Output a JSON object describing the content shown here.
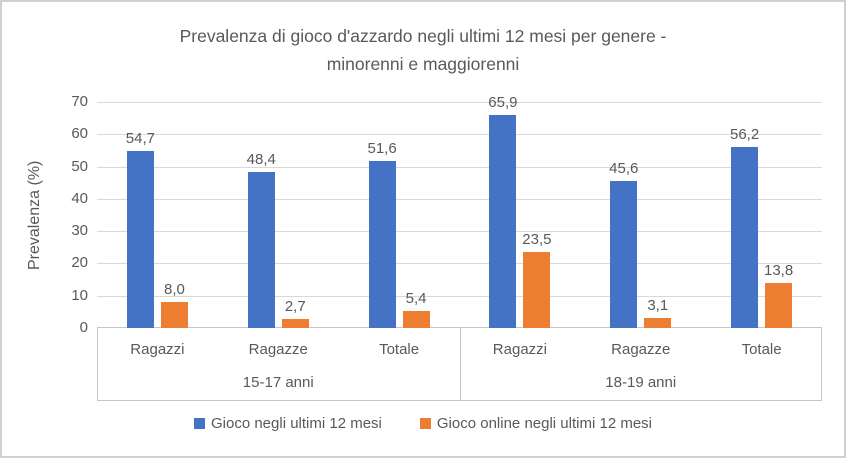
{
  "page": {
    "background": "#FFFFFF",
    "border_color": "#D0D0D0"
  },
  "chart_data": {
    "type": "bar",
    "title": "Prevalenza di gioco d'azzardo negli ultimi 12 mesi per genere - minorenni e maggiorenni",
    "title_lines": [
      "Prevalenza di gioco d'azzardo negli ultimi 12 mesi per genere -",
      "minorenni e maggiorenni"
    ],
    "ylabel": "Prevalenza (%)",
    "xlabel": "",
    "ylim": [
      0,
      70
    ],
    "yticks": [
      0,
      10,
      20,
      30,
      40,
      50,
      60,
      70
    ],
    "grid": true,
    "legend_position": "bottom",
    "categories": [
      "Ragazzi",
      "Ragazze",
      "Totale",
      "Ragazzi",
      "Ragazze",
      "Totale"
    ],
    "group_labels": [
      "15-17 anni",
      "18-19 anni"
    ],
    "series": [
      {
        "name": "Gioco negli ultimi 12 mesi",
        "color": "#4472C4",
        "values": [
          54.7,
          48.4,
          51.6,
          65.9,
          45.6,
          56.2
        ],
        "value_labels": [
          "54,7",
          "48,4",
          "51,6",
          "65,9",
          "45,6",
          "56,2"
        ]
      },
      {
        "name": "Gioco online negli ultimi 12 mesi",
        "color": "#ED7D31",
        "values": [
          8.0,
          2.7,
          5.4,
          23.5,
          3.1,
          13.8
        ],
        "value_labels": [
          "8,0",
          "2,7",
          "5,4",
          "23,5",
          "3,1",
          "13,8"
        ]
      }
    ],
    "text_color": "#595959",
    "gridline_color": "#D9D9D9",
    "axis_line_color": "#C6C6C6"
  }
}
